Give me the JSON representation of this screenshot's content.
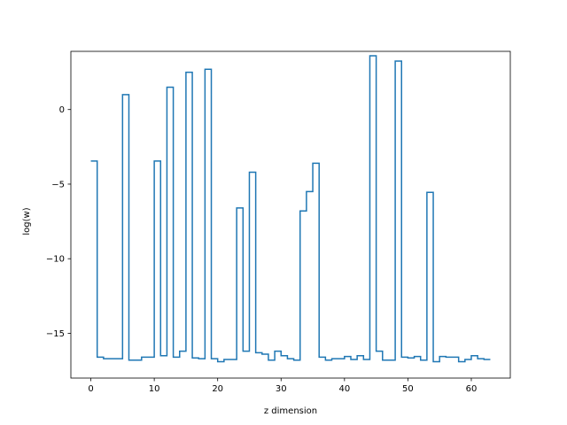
{
  "chart_data": {
    "type": "line",
    "drawstyle": "steps-post",
    "xlabel": "z dimension",
    "ylabel": "log(w)",
    "xlim": [
      -3.15,
      66.15
    ],
    "ylim": [
      -18.0,
      3.9
    ],
    "xticks": [
      0,
      10,
      20,
      30,
      40,
      50,
      60
    ],
    "yticks": [
      0,
      -5,
      -10,
      -15
    ],
    "ytick_labels": [
      "0",
      "−5",
      "−10",
      "−15"
    ],
    "series_color": "#1f77b4",
    "x": [
      0,
      1,
      2,
      3,
      4,
      5,
      6,
      7,
      8,
      9,
      10,
      11,
      12,
      13,
      14,
      15,
      16,
      17,
      18,
      19,
      20,
      21,
      22,
      23,
      24,
      25,
      26,
      27,
      28,
      29,
      30,
      31,
      32,
      33,
      34,
      35,
      36,
      37,
      38,
      39,
      40,
      41,
      42,
      43,
      44,
      45,
      46,
      47,
      48,
      49,
      50,
      51,
      52,
      53,
      54,
      55,
      56,
      57,
      58,
      59,
      60,
      61,
      62,
      63
    ],
    "y": [
      -3.45,
      -16.6,
      -16.7,
      -16.7,
      -16.7,
      1.0,
      -16.8,
      -16.8,
      -16.6,
      -16.6,
      -3.45,
      -16.5,
      1.5,
      -16.6,
      -16.2,
      2.5,
      -16.65,
      -16.7,
      2.7,
      -16.7,
      -16.9,
      -16.75,
      -16.75,
      -6.6,
      -16.2,
      -4.2,
      -16.3,
      -16.4,
      -16.8,
      -16.2,
      -16.5,
      -16.7,
      -16.8,
      -6.8,
      -5.5,
      -3.6,
      -16.6,
      -16.8,
      -16.7,
      -16.7,
      -16.55,
      -16.75,
      -16.5,
      -16.75,
      3.6,
      -16.2,
      -16.8,
      -16.8,
      3.25,
      -16.6,
      -16.65,
      -16.55,
      -16.8,
      -5.55,
      -16.9,
      -16.55,
      -16.6,
      -16.6,
      -16.9,
      -16.75,
      -16.5,
      -16.7,
      -16.75,
      -16.75
    ]
  }
}
